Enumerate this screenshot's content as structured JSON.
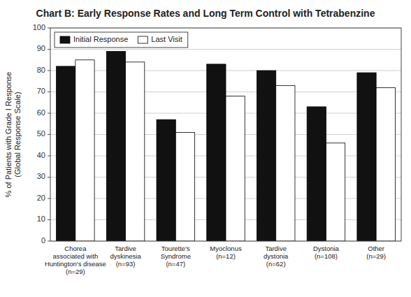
{
  "chart_data": {
    "type": "bar",
    "title": "Chart B: Early Response Rates and Long Term Control with Tetrabenzine",
    "categories": [
      "Chorea\nassociated with\nHuntington's disease\n(n=29)",
      "Tardive\ndyskinesia\n(n=93)",
      "Tourette's\nSyndrome\n(n=47)",
      "Myoclonus\n(n=12)",
      "Tardive\ndystonia\n(n=62)",
      "Dystonia\n(n=108)",
      "Other\n(n=29)"
    ],
    "series": [
      {
        "name": "Initial Response",
        "color": "#111111",
        "values": [
          82,
          89,
          57,
          83,
          80,
          63,
          79
        ]
      },
      {
        "name": "Last Visit",
        "color": "#ffffff",
        "values": [
          85,
          84,
          51,
          68,
          73,
          46,
          72
        ]
      }
    ],
    "ylabel": "% of Patients with Grade I Response\n(Global Response Scale)",
    "ylim": [
      0,
      100
    ],
    "yticks": [
      0,
      10,
      20,
      30,
      40,
      50,
      60,
      70,
      80,
      90,
      100
    ],
    "grid": true,
    "legend": "upper left"
  }
}
